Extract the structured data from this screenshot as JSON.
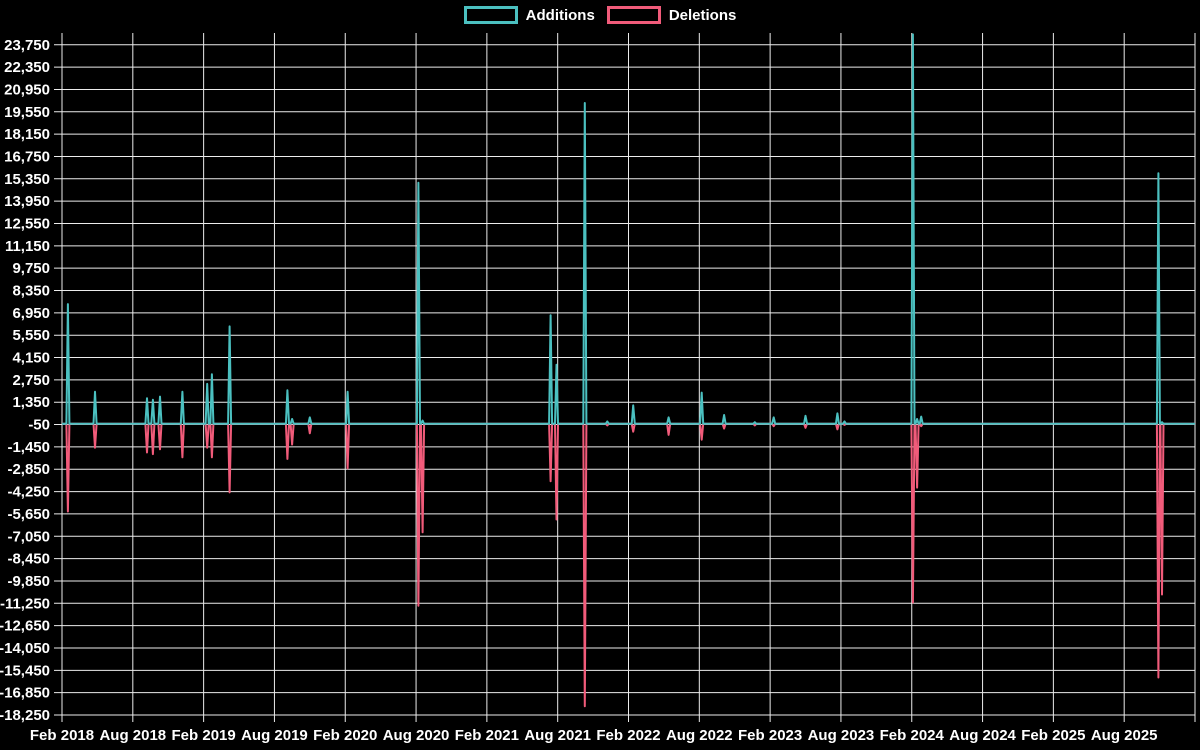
{
  "legend": {
    "items": [
      {
        "label": "Additions",
        "color": "#4bc0c0"
      },
      {
        "label": "Deletions",
        "color": "#f15b7a"
      }
    ]
  },
  "chart_data": {
    "type": "line",
    "title": "",
    "xlabel": "",
    "ylabel": "",
    "background_color": "#000000",
    "grid_color": "#ececec",
    "text_color": "#ffffff",
    "grid": "on",
    "legend_position": "top-center",
    "series": [
      {
        "name": "Additions",
        "color": "#4bc0c0"
      },
      {
        "name": "Deletions",
        "color": "#f15b7a"
      }
    ],
    "y_axis": {
      "start": 23750,
      "step": -1400,
      "labels": [
        "23,750",
        "22,350",
        "20,950",
        "19,550",
        "18,150",
        "16,750",
        "15,350",
        "13,950",
        "12,550",
        "11,150",
        "9,750",
        "8,350",
        "6,950",
        "5,550",
        "4,150",
        "2,750",
        "1,350",
        "-50",
        "-1,450",
        "-2,850",
        "-4,250",
        "-5,650",
        "-7,050",
        "-8,450",
        "-9,850",
        "-11,250",
        "-12,650",
        "-14,050",
        "-15,450",
        "-16,850",
        "-18,250"
      ]
    },
    "x_axis": {
      "tick_step_months": 6,
      "labels": [
        "Feb 2018",
        "Aug 2018",
        "Feb 2019",
        "Aug 2019",
        "Feb 2020",
        "Aug 2020",
        "Feb 2021",
        "Aug 2021",
        "Feb 2022",
        "Aug 2022",
        "Feb 2023",
        "Aug 2023",
        "Feb 2024",
        "Aug 2024",
        "Feb 2025",
        "Aug 2025"
      ]
    },
    "ylim": [
      -18250,
      24800
    ],
    "x_domain_months": [
      0,
      96
    ],
    "baseline_value": 0,
    "spike_half_width_months": 0.13,
    "spikes_comment": "each entry = [months after Feb 2018, additions peak, deletions trough]",
    "spikes": [
      [
        0.5,
        7500,
        -5500
      ],
      [
        2.8,
        2000,
        -1500
      ],
      [
        7.2,
        1600,
        -1800
      ],
      [
        7.7,
        1500,
        -1900
      ],
      [
        8.3,
        1700,
        -1600
      ],
      [
        10.2,
        2000,
        -2100
      ],
      [
        12.3,
        2500,
        -1500
      ],
      [
        12.7,
        3100,
        -2100
      ],
      [
        14.2,
        6100,
        -4300
      ],
      [
        19.1,
        2100,
        -2200
      ],
      [
        19.5,
        300,
        -1300
      ],
      [
        21.0,
        400,
        -600
      ],
      [
        24.2,
        2000,
        -2800
      ],
      [
        30.2,
        15100,
        -11400
      ],
      [
        30.55,
        200,
        -6800
      ],
      [
        41.4,
        6800,
        -3600
      ],
      [
        41.9,
        3700,
        -6000
      ],
      [
        44.3,
        20100,
        -17700
      ],
      [
        46.2,
        150,
        -100
      ],
      [
        48.4,
        1150,
        -500
      ],
      [
        51.4,
        400,
        -700
      ],
      [
        54.2,
        1950,
        -1000
      ],
      [
        56.1,
        550,
        -300
      ],
      [
        58.7,
        100,
        -100
      ],
      [
        60.3,
        400,
        -150
      ],
      [
        63.0,
        500,
        -250
      ],
      [
        65.7,
        650,
        -350
      ],
      [
        66.3,
        150,
        -80
      ],
      [
        72.1,
        24400,
        -11200
      ],
      [
        72.45,
        300,
        -4000
      ],
      [
        72.8,
        450,
        -150
      ],
      [
        92.9,
        15700,
        -15900
      ],
      [
        93.2,
        100,
        -10700
      ]
    ]
  }
}
